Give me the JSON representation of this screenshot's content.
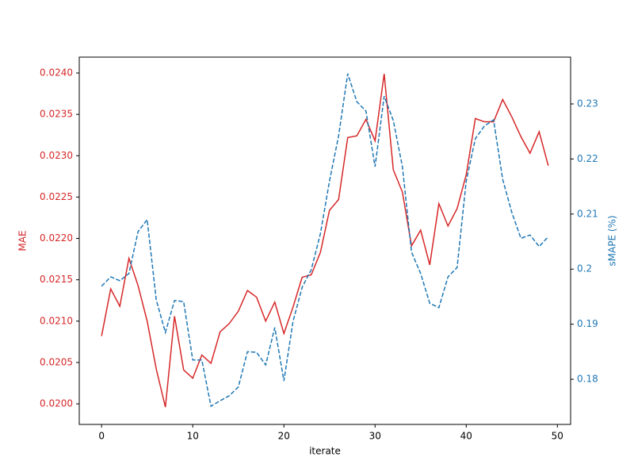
{
  "chart_data": {
    "type": "line",
    "xlabel": "iterate",
    "ylabel": "MAE",
    "y2label": "sMAPE (%)",
    "x": [
      0,
      1,
      2,
      3,
      4,
      5,
      6,
      7,
      8,
      9,
      10,
      11,
      12,
      13,
      14,
      15,
      16,
      17,
      18,
      19,
      20,
      21,
      22,
      23,
      24,
      25,
      26,
      27,
      28,
      29,
      30,
      31,
      32,
      33,
      34,
      35,
      36,
      37,
      38,
      39,
      40,
      41,
      42,
      43,
      44,
      45,
      46,
      47,
      48,
      49
    ],
    "series": [
      {
        "color": "#d62728",
        "linestyle": "solid",
        "values": [
          0.02082,
          0.02139,
          0.02118,
          0.02176,
          0.02143,
          0.021,
          0.02042,
          0.01996,
          0.02106,
          0.02041,
          0.02031,
          0.02059,
          0.02049,
          0.02087,
          0.02097,
          0.02112,
          0.02137,
          0.02129,
          0.021,
          0.02123,
          0.02085,
          0.02117,
          0.02153,
          0.02156,
          0.02183,
          0.02234,
          0.02247,
          0.02322,
          0.02324,
          0.02344,
          0.02318,
          0.02399,
          0.02283,
          0.02256,
          0.02191,
          0.0221,
          0.02168,
          0.02242,
          0.02215,
          0.02236,
          0.02277,
          0.02345,
          0.02341,
          0.02341,
          0.02368,
          0.02347,
          0.02323,
          0.02303,
          0.02329,
          0.02288
        ]
      },
      {
        "color": "#1f77b4",
        "linestyle": "dashed",
        "axis": "y2",
        "values": [
          0.1969,
          0.1986,
          0.1979,
          0.1992,
          0.2068,
          0.209,
          0.1944,
          0.1885,
          0.1943,
          0.1941,
          0.1835,
          0.1835,
          0.1751,
          0.1761,
          0.177,
          0.1786,
          0.185,
          0.1849,
          0.1826,
          0.1894,
          0.1797,
          0.1905,
          0.1967,
          0.1999,
          0.2064,
          0.216,
          0.2242,
          0.2355,
          0.2304,
          0.2287,
          0.2186,
          0.2314,
          0.227,
          0.2186,
          0.2031,
          0.1992,
          0.1938,
          0.193,
          0.1986,
          0.2003,
          0.216,
          0.2237,
          0.226,
          0.2271,
          0.2163,
          0.2103,
          0.2056,
          0.2062,
          0.2041,
          0.2059
        ]
      }
    ],
    "xlim": [
      -2.45,
      51.45
    ],
    "xticks": [
      0,
      10,
      20,
      30,
      40,
      50
    ],
    "ylim": [
      0.019751,
      0.024192
    ],
    "yticks": [
      {
        "value": 0.02,
        "label": "0.0200"
      },
      {
        "value": 0.0205,
        "label": "0.0205"
      },
      {
        "value": 0.021,
        "label": "0.0210"
      },
      {
        "value": 0.0215,
        "label": "0.0215"
      },
      {
        "value": 0.022,
        "label": "0.0220"
      },
      {
        "value": 0.0225,
        "label": "0.0225"
      },
      {
        "value": 0.023,
        "label": "0.0230"
      },
      {
        "value": 0.0235,
        "label": "0.0235"
      },
      {
        "value": 0.024,
        "label": "0.0240"
      }
    ],
    "y2lim": [
      0.1718,
      0.2385
    ],
    "y2ticks": [
      0.18,
      0.19,
      0.2,
      0.21,
      0.22,
      0.23
    ]
  }
}
